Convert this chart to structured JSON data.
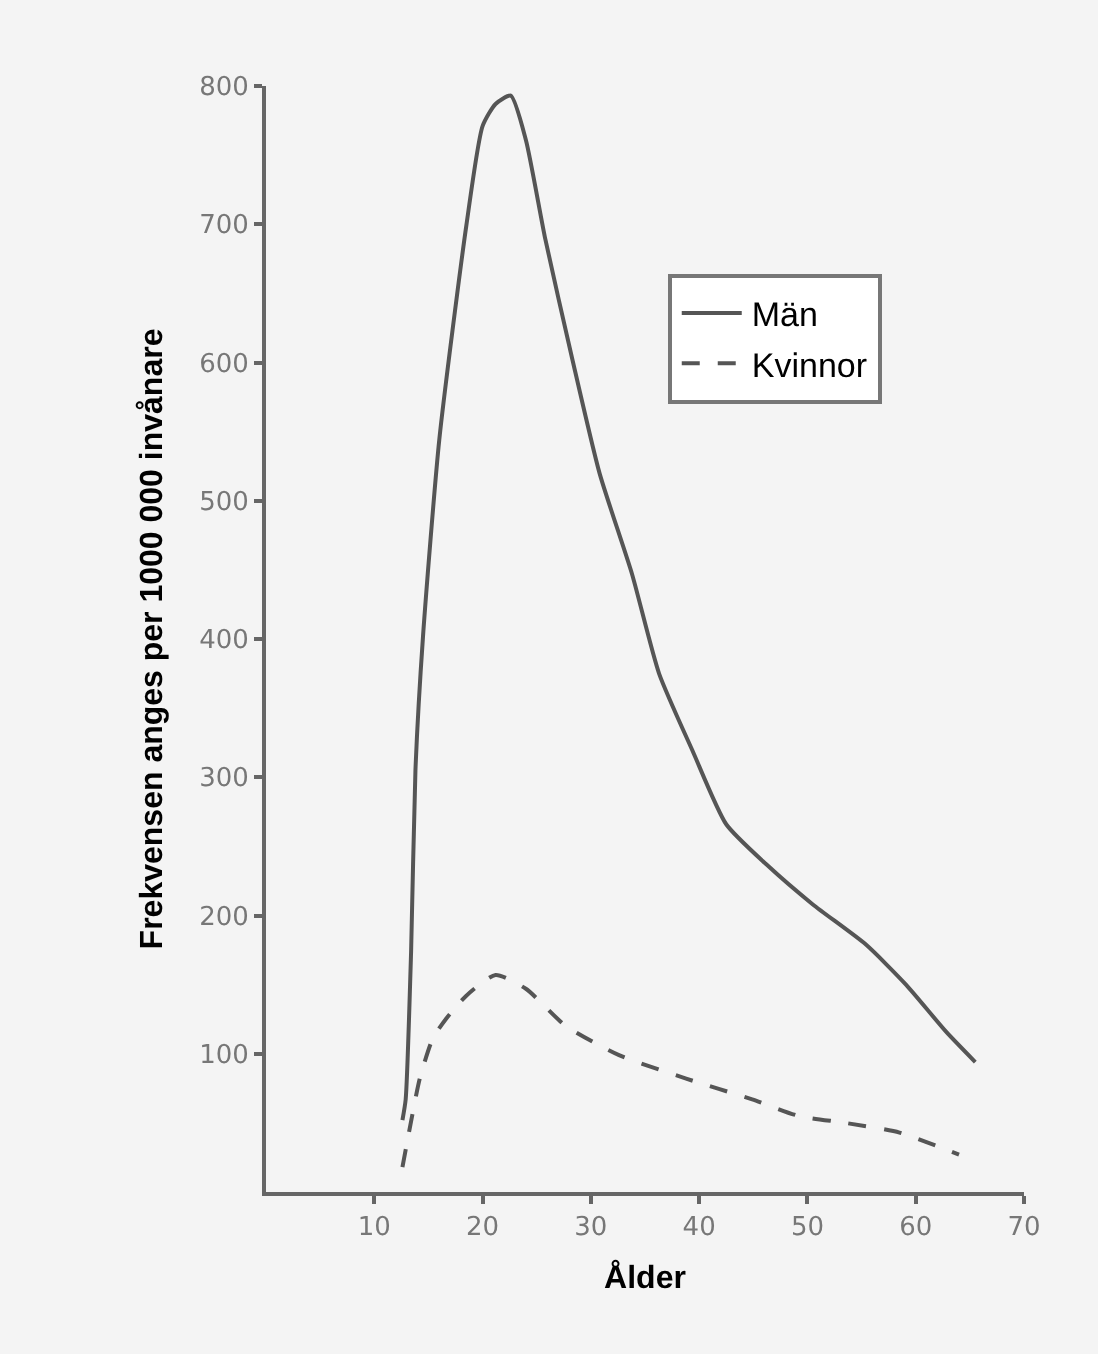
{
  "chart_data": {
    "type": "line",
    "xlabel": "Ålder",
    "ylabel": "Frekvensen anges per 1000 000 invånare",
    "xlim": [
      0,
      70
    ],
    "ylim": [
      0,
      800
    ],
    "xticks": [
      10,
      20,
      30,
      40,
      50,
      60,
      70
    ],
    "yticks": [
      100,
      200,
      300,
      400,
      500,
      600,
      700,
      800
    ],
    "grid": false,
    "legend": "top right",
    "marker": "none",
    "series": [
      {
        "name": "Män",
        "color": "#555555",
        "line_style": "solid",
        "x": [
          12.6,
          12.9,
          13.4,
          13.8,
          14.5,
          16,
          18.5,
          20,
          21.2,
          22.6,
          24,
          25.8,
          28.3,
          30.8,
          33.8,
          36.3,
          39.4,
          42.5,
          46.2,
          50.5,
          55.4,
          59.1,
          62.8,
          65.5
        ],
        "values": [
          52,
          67,
          174,
          305,
          402,
          544,
          699,
          771,
          787,
          793,
          761,
          689,
          602,
          520,
          447,
          375,
          319,
          266,
          237,
          208,
          179,
          150,
          116,
          94
        ]
      },
      {
        "name": "Kvinnor",
        "color": "#555555",
        "line_style": "dashed",
        "x": [
          12.6,
          13.2,
          14.2,
          15.4,
          16.6,
          18.5,
          21.2,
          24,
          27.7,
          32.6,
          38.8,
          44.9,
          49.2,
          53.5,
          58.5,
          64
        ],
        "values": [
          18,
          43,
          82,
          111,
          125,
          142,
          157,
          147,
          120,
          99,
          82,
          67,
          55,
          50,
          43,
          27
        ]
      }
    ]
  }
}
